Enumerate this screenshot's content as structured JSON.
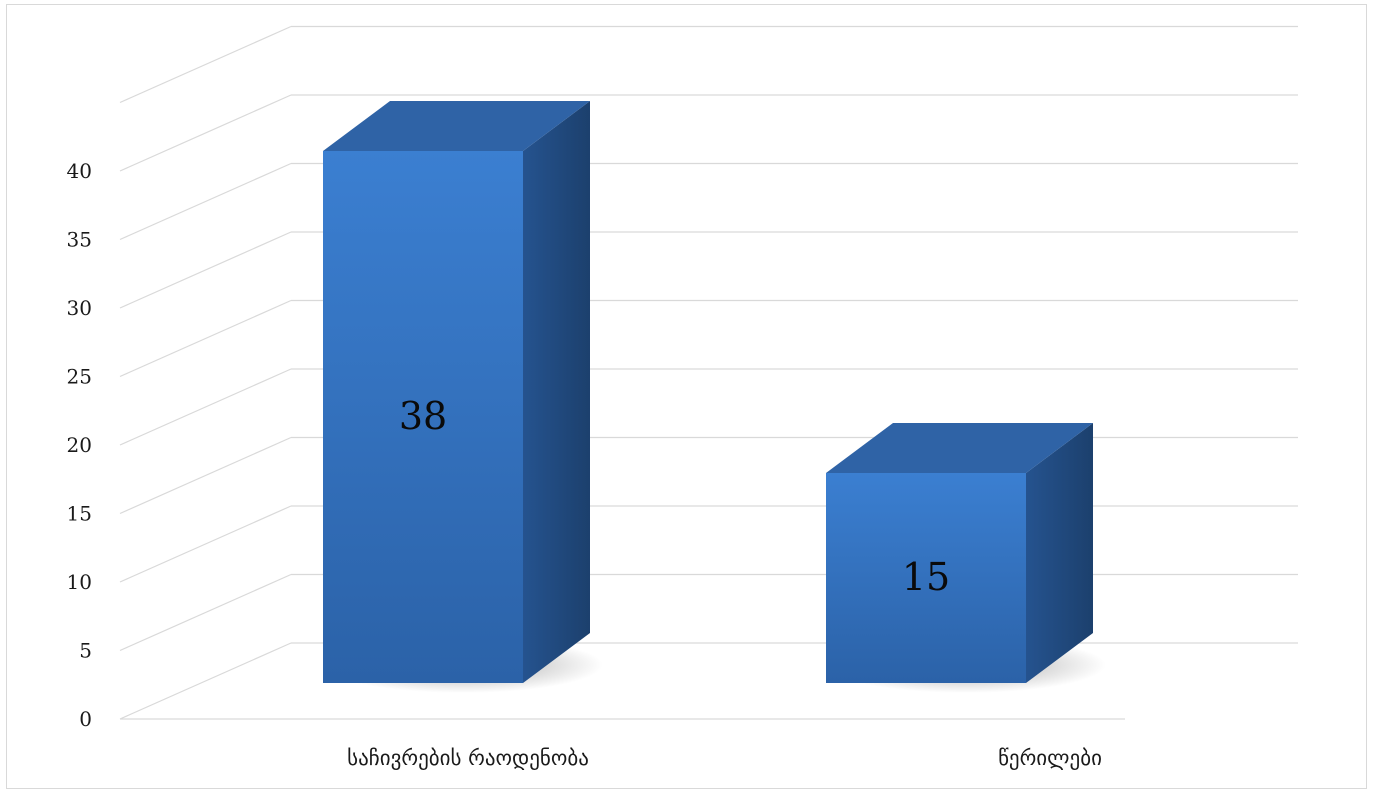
{
  "chart_data": {
    "type": "bar",
    "style": "3d-column",
    "categories": [
      "საჩივრების რაოდენობა",
      "წერილები"
    ],
    "values": [
      38,
      15
    ],
    "ylim": [
      0,
      45
    ],
    "y_ticks": [
      0,
      5,
      10,
      15,
      20,
      25,
      30,
      35,
      40
    ],
    "title": "",
    "xlabel": "",
    "ylabel": "",
    "grid": true,
    "legend": "none",
    "data_labels": true,
    "colors": {
      "bar_front_top": "#3b7fd1",
      "bar_front_bottom": "#2b62a8",
      "bar_side": "#214a80",
      "bar_top": "#2f63a6",
      "grid": "#d9d9d9",
      "text": "#1a1a1a"
    }
  }
}
